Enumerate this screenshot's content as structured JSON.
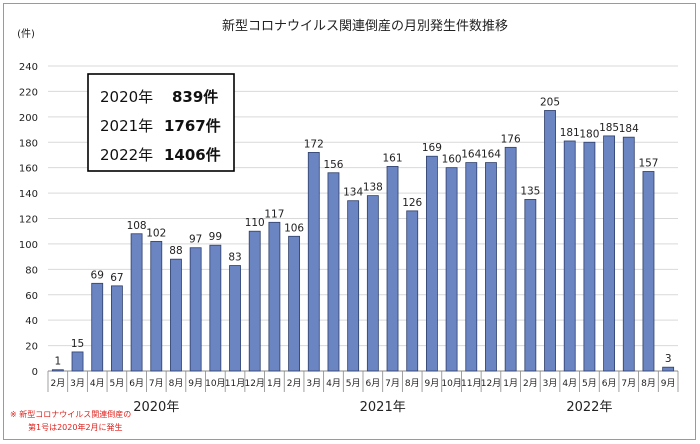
{
  "chart_data": {
    "type": "bar",
    "title": "新型コロナウイルス関連倒産の月別発生件数推移",
    "ylabel": "(件)",
    "ylim": [
      0,
      240
    ],
    "yticks": [
      0,
      20,
      40,
      60,
      80,
      100,
      120,
      140,
      160,
      180,
      200,
      220,
      240
    ],
    "categories": [
      "2月",
      "3月",
      "4月",
      "5月",
      "6月",
      "7月",
      "8月",
      "9月",
      "10月",
      "11月",
      "12月",
      "1月",
      "2月",
      "3月",
      "4月",
      "5月",
      "6月",
      "7月",
      "8月",
      "9月",
      "10月",
      "11月",
      "12月",
      "1月",
      "2月",
      "3月",
      "4月",
      "5月",
      "6月",
      "7月",
      "8月",
      "9月"
    ],
    "values": [
      1,
      15,
      69,
      67,
      108,
      102,
      88,
      97,
      99,
      83,
      110,
      117,
      106,
      172,
      156,
      134,
      138,
      161,
      126,
      169,
      160,
      164,
      164,
      176,
      135,
      205,
      181,
      180,
      185,
      184,
      157,
      3
    ],
    "year_groups": [
      {
        "label": "2020年",
        "start": 0,
        "end": 10
      },
      {
        "label": "2021年",
        "start": 11,
        "end": 22
      },
      {
        "label": "2022年",
        "start": 23,
        "end": 31
      }
    ],
    "bar_color": "#6b84c2",
    "grid": true
  },
  "summary": [
    {
      "year": "2020年",
      "count": "839件"
    },
    {
      "year": "2021年",
      "count": "1767件"
    },
    {
      "year": "2022年",
      "count": "1406件"
    }
  ],
  "note": {
    "line1": "※ 新型コロナウイルス関連倒産の",
    "line2": "第1号は2020年2月に発生"
  }
}
